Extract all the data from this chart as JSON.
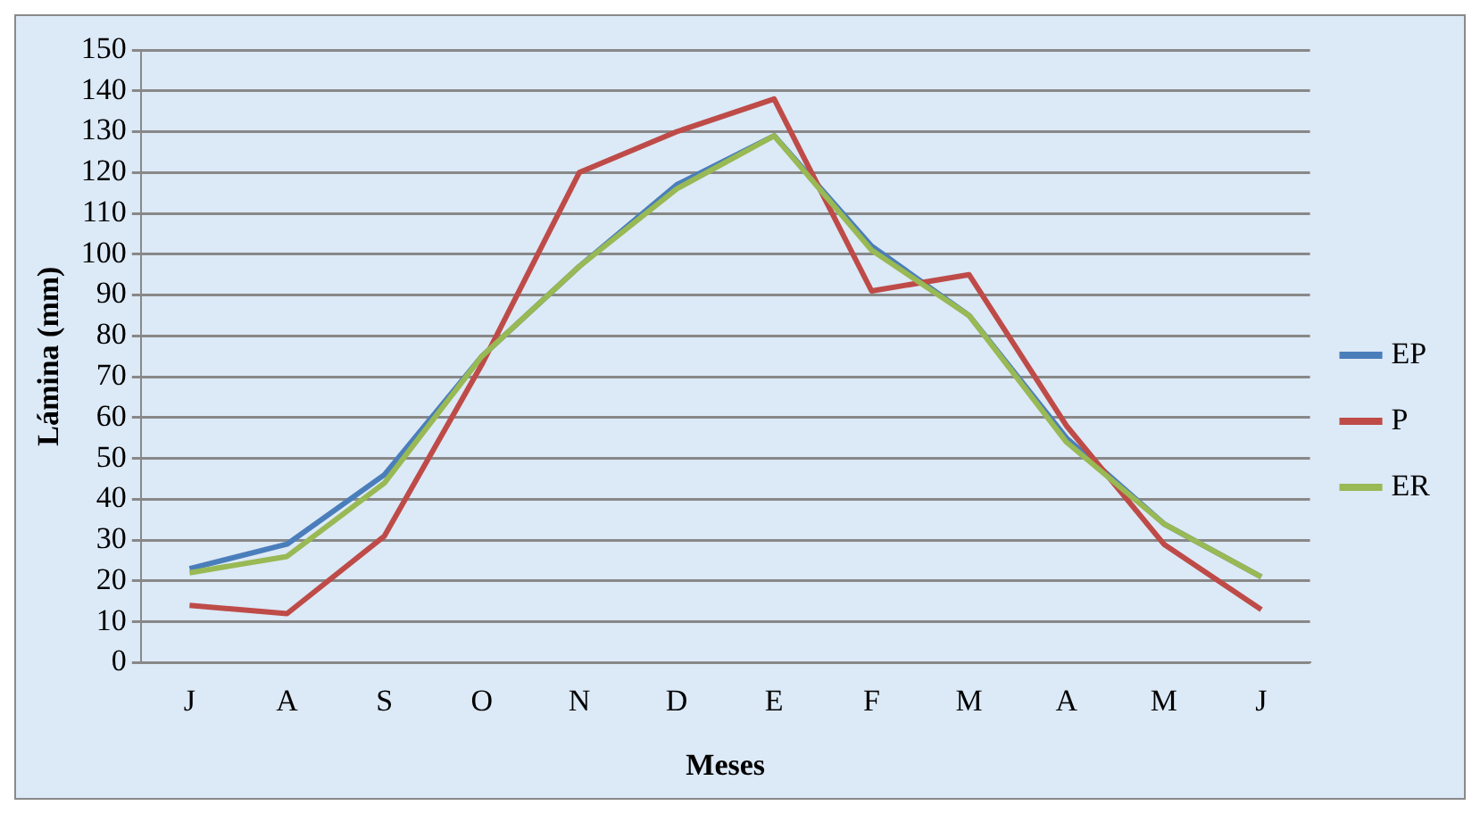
{
  "chart_data": {
    "type": "line",
    "xlabel": "Meses",
    "ylabel": "Lámina (mm)",
    "categories": [
      "J",
      "A",
      "S",
      "O",
      "N",
      "D",
      "E",
      "F",
      "M",
      "A",
      "M",
      "J"
    ],
    "series": [
      {
        "name": "EP",
        "color": "#4a7ebb",
        "values": [
          23,
          29,
          46,
          75,
          97,
          117,
          129,
          102,
          85,
          55,
          34,
          21
        ]
      },
      {
        "name": "P",
        "color": "#be4b48",
        "values": [
          14,
          12,
          31,
          73,
          120,
          130,
          138,
          91,
          95,
          58,
          29,
          13
        ]
      },
      {
        "name": "ER",
        "color": "#98b954",
        "values": [
          22,
          26,
          44,
          75,
          97,
          116,
          129,
          101,
          85,
          54,
          34,
          21
        ]
      }
    ],
    "ylim": [
      0,
      150
    ],
    "yticks": [
      0,
      10,
      20,
      30,
      40,
      50,
      60,
      70,
      80,
      90,
      100,
      110,
      120,
      130,
      140,
      150
    ],
    "grid": "y",
    "legend": "right",
    "marker": "none",
    "line_style": "solid"
  }
}
